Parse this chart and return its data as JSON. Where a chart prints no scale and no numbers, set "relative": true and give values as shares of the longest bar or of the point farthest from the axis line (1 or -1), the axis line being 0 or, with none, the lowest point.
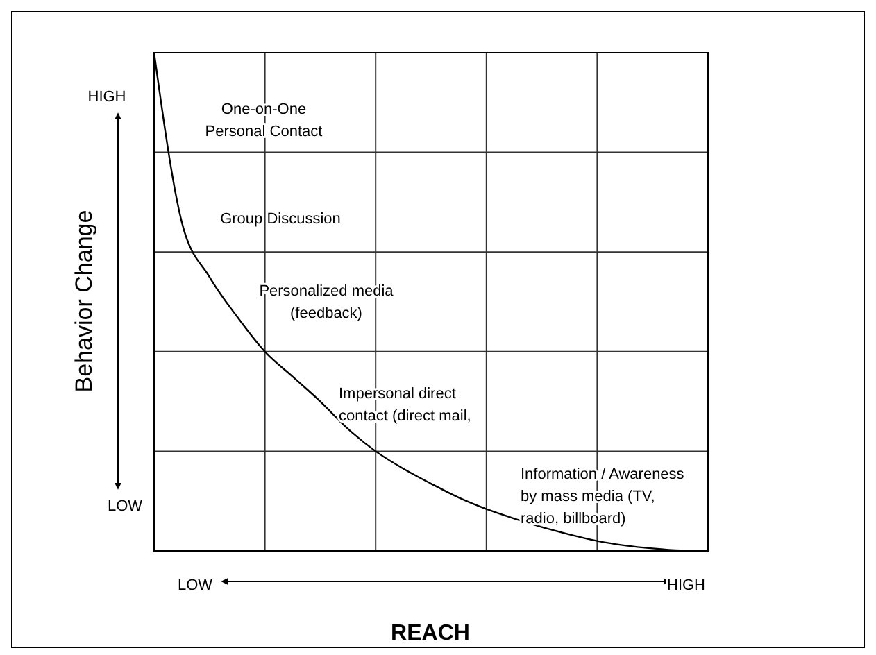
{
  "chart_data": {
    "type": "line",
    "relative": true,
    "ylabel": "Behavior Change",
    "xlabel": "REACH",
    "grid": true,
    "marker": "none",
    "line_style": "solid",
    "categories": [
      null,
      null,
      null,
      null,
      null,
      null,
      null,
      null,
      null,
      null,
      null,
      null,
      null,
      null,
      null,
      null,
      null,
      null,
      null,
      null,
      null
    ],
    "series": [
      {
        "color": "#000000",
        "values": [
          1,
          0.66,
          0.55,
          0.47,
          0.4,
          0.35,
          0.3,
          0.245,
          0.2,
          0.165,
          0.135,
          0.107,
          0.084,
          0.065,
          0.048,
          0.033,
          0.02,
          0.011,
          0.005,
          0.001,
          0
        ]
      }
    ],
    "annotations": [
      "One-on-One\nPersonal Contact",
      "Group Discussion",
      "Personalized media\n(feedback)",
      "Impersonal direct\ncontact (direct mail,",
      "Information / Awareness\nby mass media (TV,\nradio, billboard)",
      "HIGH",
      "LOW",
      "LOW",
      "HIGH"
    ]
  }
}
